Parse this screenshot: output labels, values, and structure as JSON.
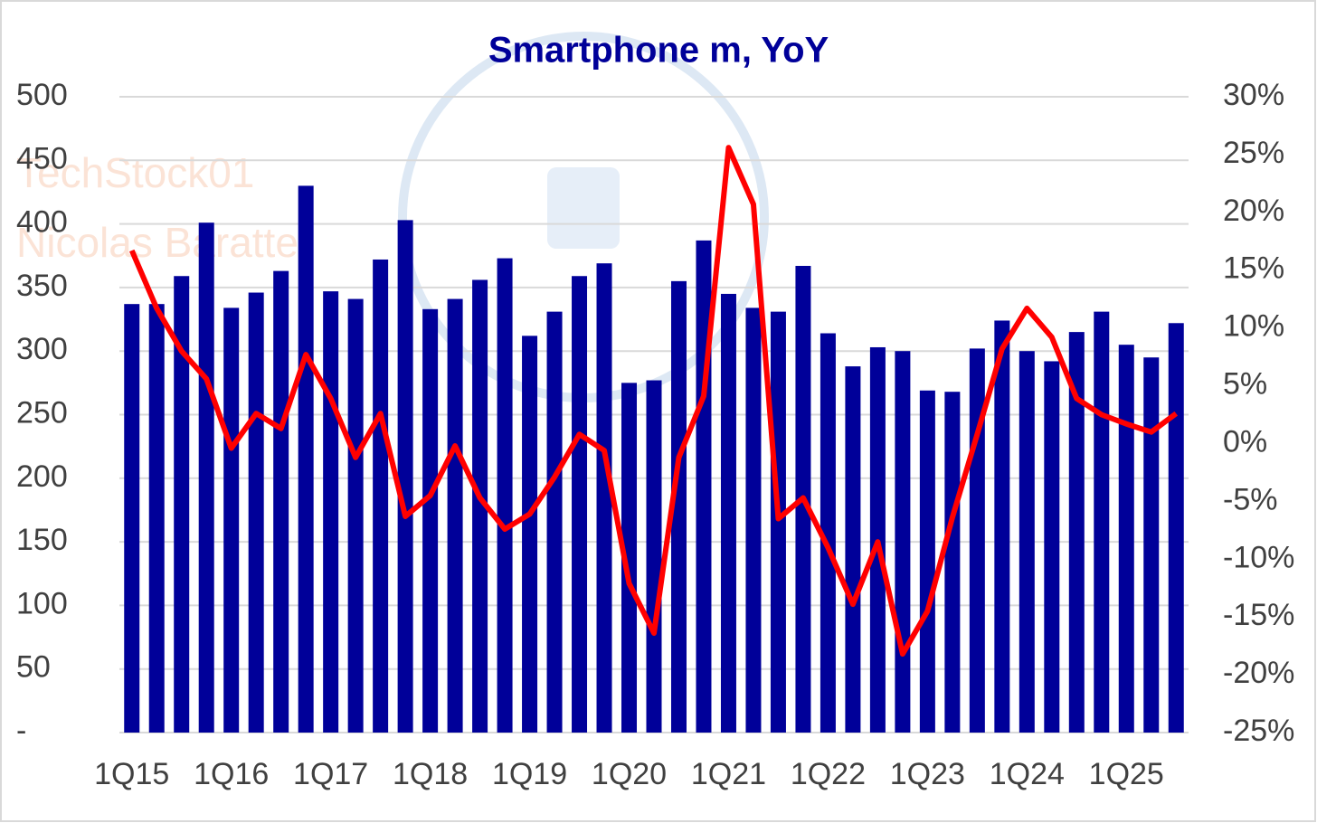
{
  "chart_data": {
    "type": "bar-line",
    "title": "Smartphone m, YoY",
    "watermark": [
      "TechStock01",
      "Nicolas  Baratte"
    ],
    "categories": [
      "1Q15",
      null,
      null,
      null,
      "1Q16",
      null,
      null,
      null,
      "1Q17",
      null,
      null,
      null,
      "1Q18",
      null,
      null,
      null,
      "1Q19",
      null,
      null,
      null,
      "1Q20",
      null,
      null,
      null,
      "1Q21",
      null,
      null,
      null,
      "1Q22",
      null,
      null,
      null,
      "1Q23",
      null,
      null,
      null,
      "1Q24",
      null,
      null,
      null,
      "1Q25",
      null,
      null
    ],
    "series": [
      {
        "type": "bar",
        "color": "#000099",
        "values": [
          337,
          337,
          359,
          401,
          334,
          346,
          363,
          430,
          347,
          341,
          372,
          403,
          333,
          341,
          356,
          373,
          312,
          331,
          359,
          369,
          275,
          277,
          355,
          387,
          345,
          334,
          331,
          367,
          314,
          288,
          303,
          300,
          269,
          268,
          302,
          324,
          300,
          292,
          315,
          331,
          305,
          295,
          322
        ]
      },
      {
        "type": "line",
        "axis": "y2",
        "color": "#ff0000",
        "values": [
          16.7,
          11.7,
          8.0,
          5.6,
          -0.4,
          2.6,
          1.3,
          7.7,
          3.9,
          -1.2,
          2.6,
          -6.3,
          -4.5,
          -0.2,
          -4.7,
          -7.4,
          -6.1,
          -2.9,
          0.8,
          -0.6,
          -12.1,
          -16.4,
          -1.2,
          4.1,
          25.6,
          20.7,
          -6.5,
          -4.7,
          -9.0,
          -13.9,
          -8.5,
          -18.2,
          -14.5,
          -6.4,
          0.8,
          8.2,
          11.7,
          9.2,
          3.9,
          2.5,
          1.7,
          1.0,
          2.6
        ]
      }
    ],
    "ylim": [
      0,
      500
    ],
    "yticks": [
      {
        "value": 0,
        "label": "-"
      },
      50,
      100,
      150,
      200,
      250,
      300,
      350,
      400,
      450,
      500
    ],
    "y2lim": [
      -25,
      30
    ],
    "y2ticks": [
      {
        "value": -25,
        "label": "-25%"
      },
      {
        "value": -20,
        "label": "-20%"
      },
      {
        "value": -15,
        "label": "-15%"
      },
      {
        "value": -10,
        "label": "-10%"
      },
      {
        "value": -5,
        "label": "-5%"
      },
      {
        "value": 0,
        "label": "0%"
      },
      {
        "value": 5,
        "label": "5%"
      },
      {
        "value": 10,
        "label": "10%"
      },
      {
        "value": 15,
        "label": "15%"
      },
      {
        "value": 20,
        "label": "20%"
      },
      {
        "value": 25,
        "label": "25%"
      },
      {
        "value": 30,
        "label": "30%"
      }
    ],
    "grid": true
  }
}
